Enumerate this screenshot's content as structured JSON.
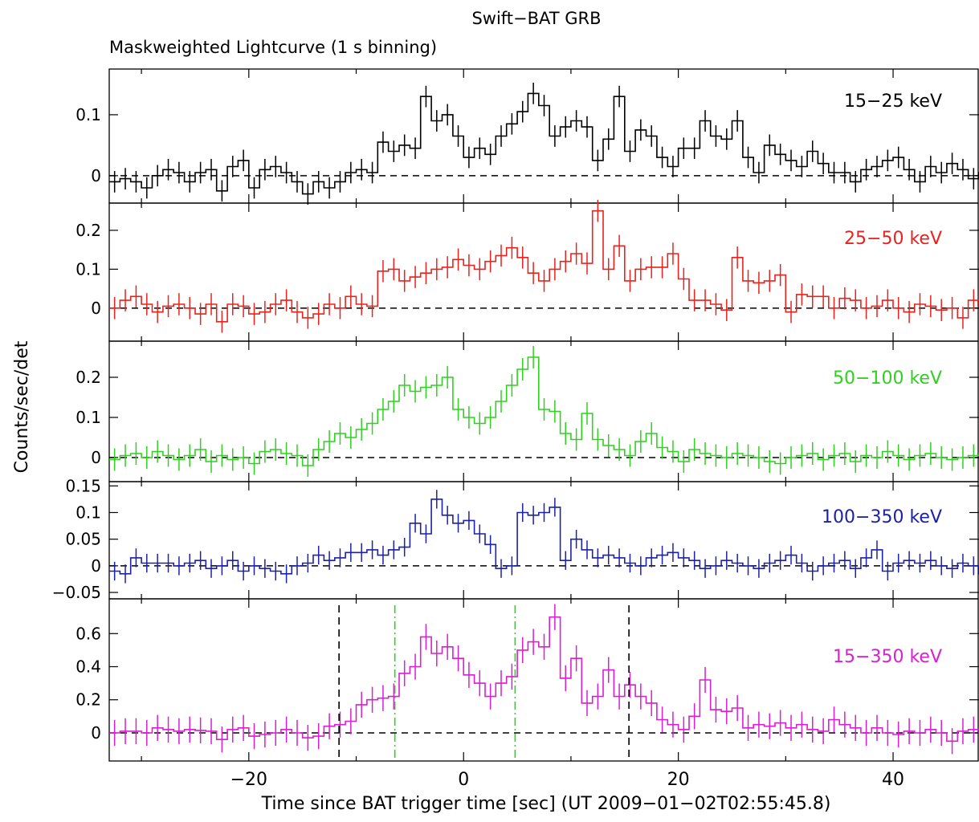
{
  "title": "Swift−BAT GRB",
  "subtitle": "Maskweighted Lightcurve (1 s binning)",
  "chart_data": {
    "type": "line",
    "title": "Swift−BAT GRB",
    "subtitle": "Maskweighted Lightcurve (1 s binning)",
    "xlabel": "Time since BAT trigger time [sec] (UT 2009−01−02T02:55:45.8)",
    "ylabel": "Counts/sec/det",
    "xlim": [
      -33,
      48
    ],
    "x_ticks": [
      -20,
      0,
      20,
      40
    ],
    "x_tick_labels": [
      "−20",
      "0",
      "20",
      "40"
    ],
    "grid": false,
    "panels": [
      {
        "name": "15−25 keV",
        "color": "#000000",
        "ylim": [
          -0.045,
          0.175
        ],
        "y_ticks": [
          0,
          0.1
        ],
        "y_tick_labels": [
          "0",
          "0.1"
        ],
        "x_start": -33,
        "values": [
          -0.01,
          -0.005,
          -0.01,
          -0.02,
          0.0,
          0.01,
          0.005,
          -0.01,
          0.005,
          0.01,
          -0.025,
          0.015,
          0.025,
          -0.02,
          0.01,
          0.015,
          0.005,
          -0.01,
          -0.03,
          -0.01,
          -0.02,
          -0.01,
          0.005,
          0.01,
          0.005,
          0.055,
          0.04,
          0.05,
          0.045,
          0.13,
          0.09,
          0.1,
          0.065,
          0.03,
          0.045,
          0.035,
          0.065,
          0.085,
          0.105,
          0.135,
          0.115,
          0.065,
          0.08,
          0.09,
          0.08,
          0.025,
          0.06,
          0.13,
          0.04,
          0.075,
          0.065,
          0.03,
          0.015,
          0.045,
          0.045,
          0.09,
          0.065,
          0.06,
          0.09,
          0.03,
          0.005,
          0.05,
          0.035,
          0.025,
          0.015,
          0.04,
          0.02,
          0.005,
          0.005,
          -0.01,
          0.01,
          0.015,
          0.025,
          0.03,
          0.01,
          -0.01,
          0.015,
          0.005,
          0.02,
          0.01,
          -0.005,
          0.005,
          0.005
        ]
      },
      {
        "name": "25−50 keV",
        "color": "#e8231d",
        "ylim": [
          -0.085,
          0.27
        ],
        "y_ticks": [
          0,
          0.1,
          0.2
        ],
        "y_tick_labels": [
          "0",
          "0.1",
          "0.2"
        ],
        "x_start": -33,
        "values": [
          0.0,
          0.02,
          0.03,
          0.01,
          -0.01,
          0.005,
          0.01,
          0.0,
          -0.015,
          0.01,
          -0.035,
          0.01,
          0.005,
          -0.015,
          -0.01,
          0.01,
          0.02,
          -0.01,
          -0.025,
          -0.015,
          0.01,
          0.0,
          0.03,
          0.01,
          0.005,
          0.095,
          0.1,
          0.07,
          0.08,
          0.09,
          0.1,
          0.105,
          0.125,
          0.11,
          0.1,
          0.12,
          0.135,
          0.155,
          0.13,
          0.09,
          0.07,
          0.1,
          0.12,
          0.14,
          0.115,
          0.25,
          0.1,
          0.16,
          0.07,
          0.1,
          0.105,
          0.105,
          0.14,
          0.075,
          0.02,
          0.02,
          0.01,
          -0.005,
          0.13,
          0.07,
          0.065,
          0.07,
          0.085,
          -0.01,
          0.035,
          0.03,
          0.03,
          0.0,
          0.025,
          0.02,
          0.0,
          0.005,
          0.02,
          0.0,
          -0.01,
          0.01,
          0.005,
          -0.005,
          0.0,
          -0.025,
          0.02,
          0.005,
          0.01
        ]
      },
      {
        "name": "50−100 keV",
        "color": "#2fd11f",
        "ylim": [
          -0.06,
          0.29
        ],
        "y_ticks": [
          0,
          0.1,
          0.2
        ],
        "y_tick_labels": [
          "0",
          "0.1",
          "0.2"
        ],
        "x_start": -33,
        "values": [
          -0.005,
          0.005,
          0.01,
          0.0,
          0.015,
          0.005,
          -0.005,
          0.005,
          0.02,
          -0.01,
          0.005,
          -0.005,
          0.0,
          -0.015,
          0.015,
          0.02,
          0.01,
          0.005,
          -0.02,
          0.02,
          0.04,
          0.06,
          0.05,
          0.07,
          0.085,
          0.12,
          0.14,
          0.18,
          0.165,
          0.175,
          0.18,
          0.2,
          0.12,
          0.1,
          0.085,
          0.1,
          0.14,
          0.18,
          0.22,
          0.25,
          0.12,
          0.115,
          0.06,
          0.045,
          0.11,
          0.045,
          0.03,
          0.02,
          0.005,
          0.04,
          0.06,
          0.025,
          0.015,
          -0.01,
          0.02,
          0.01,
          0.005,
          0.0,
          0.01,
          0.005,
          0.0,
          -0.01,
          -0.015,
          0.0,
          0.005,
          0.01,
          -0.005,
          0.005,
          0.01,
          -0.01,
          0.005,
          0.0,
          0.015,
          0.005,
          -0.005,
          0.005,
          0.01,
          0.0,
          -0.005,
          0.0,
          0.005,
          0.01,
          0.03
        ]
      },
      {
        "name": "100−350 keV",
        "color": "#1c21a8",
        "ylim": [
          -0.062,
          0.158
        ],
        "y_ticks": [
          -0.05,
          0,
          0.05,
          0.1,
          0.15
        ],
        "y_tick_labels": [
          "−0.05",
          "0",
          "0.05",
          "0.1",
          "0.15"
        ],
        "x_start": -33,
        "values": [
          -0.01,
          -0.015,
          0.015,
          0.005,
          0.005,
          0.005,
          0.0,
          0.005,
          0.01,
          -0.005,
          0.0,
          0.01,
          -0.01,
          0.0,
          -0.005,
          -0.01,
          -0.015,
          0.0,
          0.005,
          0.02,
          0.01,
          0.015,
          0.025,
          0.025,
          0.03,
          0.02,
          0.03,
          0.035,
          0.08,
          0.06,
          0.125,
          0.095,
          0.08,
          0.085,
          0.06,
          0.04,
          -0.005,
          0.0,
          0.1,
          0.095,
          0.1,
          0.11,
          0.01,
          0.05,
          0.03,
          0.015,
          0.02,
          0.015,
          0.005,
          0.0,
          0.015,
          0.02,
          0.025,
          0.015,
          0.01,
          -0.005,
          0.0,
          0.01,
          0.005,
          0.0,
          -0.005,
          0.005,
          0.01,
          0.02,
          0.005,
          -0.01,
          0.0,
          0.005,
          0.01,
          -0.005,
          0.015,
          0.03,
          -0.01,
          0.005,
          0.01,
          0.005,
          0.01,
          0.0,
          -0.005,
          0.005,
          0.0,
          -0.015,
          0.005,
          0.03
        ]
      },
      {
        "name": "15−350 keV",
        "color": "#d81fd1",
        "ylim": [
          -0.17,
          0.81
        ],
        "y_ticks": [
          0,
          0.2,
          0.4,
          0.6
        ],
        "y_tick_labels": [
          "0",
          "0.2",
          "0.4",
          "0.6"
        ],
        "x_start": -33,
        "values": [
          0.0,
          0.01,
          0.01,
          0.0,
          0.03,
          0.02,
          0.01,
          0.02,
          0.015,
          0.01,
          -0.04,
          0.02,
          0.03,
          -0.02,
          -0.01,
          0.0,
          0.02,
          0.0,
          -0.03,
          -0.02,
          0.04,
          0.05,
          0.07,
          0.17,
          0.2,
          0.21,
          0.22,
          0.36,
          0.4,
          0.58,
          0.48,
          0.52,
          0.45,
          0.35,
          0.3,
          0.22,
          0.3,
          0.34,
          0.5,
          0.55,
          0.52,
          0.7,
          0.33,
          0.45,
          0.18,
          0.22,
          0.38,
          0.22,
          0.29,
          0.22,
          0.18,
          0.08,
          0.05,
          0.02,
          0.1,
          0.32,
          0.14,
          0.13,
          0.15,
          0.03,
          0.05,
          0.04,
          0.06,
          0.03,
          0.05,
          0.02,
          0.01,
          0.08,
          0.05,
          0.03,
          0.0,
          0.03,
          0.0,
          -0.01,
          0.01,
          0.0,
          0.02,
          0.0,
          -0.05,
          0.01,
          0.02,
          0.0,
          0.1
        ]
      }
    ],
    "markers": [
      {
        "label": "black-dashed",
        "x": -11.6,
        "style": "dashed",
        "color": "#000000"
      },
      {
        "label": "black-dashed",
        "x": 15.4,
        "style": "dashed",
        "color": "#000000"
      },
      {
        "label": "green-dashdot",
        "x": -6.4,
        "style": "dashdot",
        "color": "#2fd11f"
      },
      {
        "label": "green-dashdot",
        "x": 4.8,
        "style": "dashdot",
        "color": "#2fd11f"
      }
    ]
  }
}
